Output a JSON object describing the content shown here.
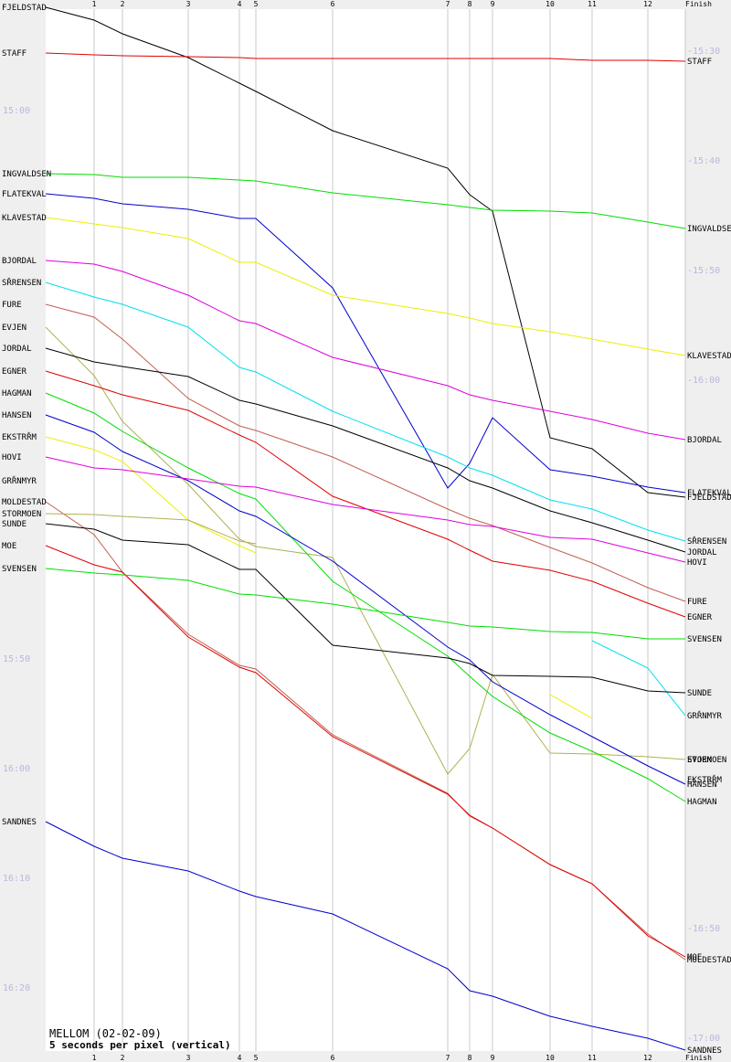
{
  "chart_data": {
    "type": "line",
    "title": "MELLOM (02-02-09)",
    "subtitle": "5 seconds per pixel (vertical)",
    "x_ticks": [
      {
        "label": "1",
        "x": 1
      },
      {
        "label": "2",
        "x": 2
      },
      {
        "label": "3",
        "x": 3
      },
      {
        "label": "4",
        "x": 4
      },
      {
        "label": "5",
        "x": 5
      },
      {
        "label": "6",
        "x": 6
      },
      {
        "label": "7",
        "x": 7
      },
      {
        "label": "8",
        "x": 8
      },
      {
        "label": "9",
        "x": 9
      },
      {
        "label": "10",
        "x": 10
      },
      {
        "label": "11",
        "x": 11
      },
      {
        "label": "12",
        "x": 12
      },
      {
        "label": "Finish",
        "x": 13
      }
    ],
    "left_time_labels": [
      "15:00",
      "15:50",
      "16:00",
      "16:10",
      "16:20"
    ],
    "right_time_labels": [
      "15:30",
      "15:40",
      "15:50",
      "16:00",
      "16:50",
      "17:00"
    ],
    "grid": true,
    "colors": {
      "black": "#000000",
      "red": "#e00000",
      "green": "#00dd00",
      "blue": "#0000cc",
      "yellow": "#eeee00",
      "magenta": "#dd00dd",
      "cyan": "#00e0ee",
      "brown": "#c06050",
      "olive": "#b0b050"
    },
    "series": [
      {
        "name": "FJELDSTAD",
        "end_label": "FJELDSTAD",
        "color": "black",
        "y": [
          8,
          22,
          37,
          63,
          91,
          100,
          143,
          184,
          213,
          231,
          479,
          491,
          539,
          544
        ]
      },
      {
        "name": "STAFF",
        "end_label": "STAFF",
        "color": "red",
        "y": [
          58,
          60,
          61,
          62,
          63,
          64,
          64,
          64,
          64,
          64,
          64,
          66,
          66,
          67
        ]
      },
      {
        "name": "INGVALDSEN",
        "end_label": "INGVALDSEN",
        "color": "green",
        "y": [
          190,
          191,
          194,
          194,
          197,
          198,
          211,
          224,
          227,
          230,
          231,
          233,
          243,
          250
        ]
      },
      {
        "name": "FLATEKVAL",
        "end_label": "FLATEKVAL",
        "color": "blue",
        "y": [
          212,
          217,
          223,
          229,
          239,
          239,
          315,
          534,
          507,
          457,
          514,
          521,
          533,
          539
        ]
      },
      {
        "name": "KLAVESTAD",
        "end_label": "KLAVESTAD",
        "color": "yellow",
        "y": [
          238,
          245,
          249,
          261,
          287,
          287,
          323,
          343,
          348,
          354,
          363,
          371,
          382,
          389
        ]
      },
      {
        "name": "BJORDAL",
        "end_label": "BJORDAL",
        "color": "magenta",
        "y": [
          285,
          289,
          297,
          323,
          351,
          354,
          391,
          422,
          432,
          438,
          450,
          459,
          474,
          481
        ]
      },
      {
        "name": "SŘRENSEN",
        "end_label": "SŘRENSEN",
        "color": "cyan",
        "y": [
          309,
          325,
          333,
          358,
          402,
          407,
          450,
          500,
          512,
          520,
          547,
          557,
          580,
          592
        ]
      },
      {
        "name": "FURE",
        "end_label": "FURE",
        "color": "brown",
        "y": [
          333,
          347,
          371,
          436,
          466,
          471,
          500,
          557,
          567,
          575,
          599,
          616,
          643,
          658
        ]
      },
      {
        "name": "EVJEN",
        "end_label": "EVJEN",
        "color": "olive",
        "y": [
          358,
          411,
          461,
          530,
          590,
          598,
          610,
          847,
          819,
          738,
          824,
          825,
          828,
          831
        ]
      },
      {
        "name": "JORDAL",
        "end_label": "JORDAL",
        "color": "black",
        "y": [
          381,
          396,
          401,
          412,
          438,
          442,
          466,
          512,
          526,
          534,
          559,
          572,
          591,
          604
        ]
      },
      {
        "name": "EGNER",
        "end_label": "EGNER",
        "color": "red",
        "y": [
          406,
          422,
          432,
          449,
          476,
          484,
          543,
          590,
          602,
          614,
          624,
          636,
          660,
          675
        ]
      },
      {
        "name": "HAGMAN",
        "end_label": "HAGMAN",
        "color": "green",
        "y": [
          430,
          452,
          472,
          512,
          540,
          546,
          636,
          718,
          740,
          762,
          802,
          822,
          852,
          877
        ]
      },
      {
        "name": "HANSEN",
        "end_label": "HANSEN",
        "color": "blue",
        "y": [
          454,
          473,
          494,
          526,
          559,
          565,
          614,
          708,
          722,
          746,
          782,
          806,
          838,
          858
        ]
      },
      {
        "name": "EKSTRŘM",
        "end_label": "EKSTRŘM",
        "color": "yellow",
        "y": [
          478,
          492,
          505,
          569,
          597,
          605,
          null,
          null,
          null,
          null,
          760,
          786,
          null,
          853
        ]
      },
      {
        "name": "HOVI",
        "end_label": "HOVI",
        "color": "magenta",
        "y": [
          500,
          512,
          514,
          524,
          532,
          533,
          552,
          569,
          574,
          576,
          588,
          590,
          605,
          615
        ]
      },
      {
        "name": "GRŘNMYR",
        "end_label": "GRŘNMYR",
        "color": "cyan",
        "y": [
          526,
          null,
          null,
          null,
          null,
          null,
          null,
          null,
          null,
          null,
          null,
          701,
          731,
          783
        ]
      },
      {
        "name": "MOLDESTAD",
        "end_label": "MOLDESTAD",
        "color": "brown",
        "y": [
          549,
          585,
          626,
          694,
          728,
          732,
          804,
          868,
          893,
          906,
          946,
          967,
          1022,
          1050
        ]
      },
      {
        "name": "STORMOEN",
        "end_label": "STORMOEN",
        "color": "olive",
        "y": [
          562,
          563,
          565,
          569,
          592,
          595,
          null,
          null,
          null,
          null,
          null,
          null,
          null,
          831
        ]
      },
      {
        "name": "SUNDE",
        "end_label": "SUNDE",
        "color": "black",
        "y": [
          573,
          579,
          591,
          596,
          623,
          623,
          706,
          720,
          726,
          739,
          740,
          741,
          756,
          758
        ]
      },
      {
        "name": "MOE",
        "end_label": "MOE",
        "color": "red",
        "y": [
          597,
          618,
          626,
          697,
          730,
          736,
          806,
          869,
          892,
          906,
          946,
          967,
          1024,
          1047
        ]
      },
      {
        "name": "SVENSEN",
        "end_label": "SVENSEN",
        "color": "green",
        "y": [
          622,
          627,
          629,
          635,
          650,
          651,
          661,
          681,
          685,
          686,
          691,
          692,
          699,
          699
        ]
      },
      {
        "name": "SANDNES",
        "end_label": "SANDNES",
        "color": "blue",
        "y": [
          899,
          926,
          939,
          953,
          975,
          981,
          1000,
          1060,
          1084,
          1090,
          1112,
          1123,
          1136,
          1149
        ]
      }
    ]
  }
}
